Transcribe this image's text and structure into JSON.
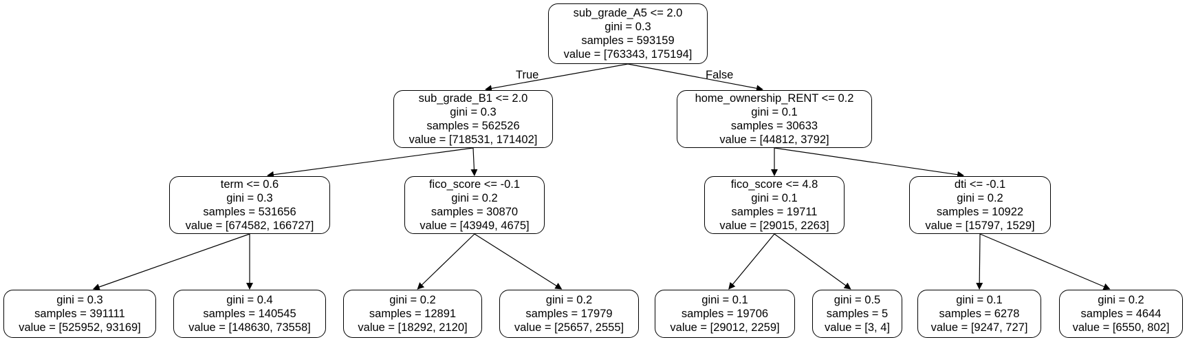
{
  "edge_labels": {
    "true": "True",
    "false": "False"
  },
  "nodes": [
    {
      "id": "n0",
      "condition": "sub_grade_A5 <= 2.0",
      "gini": "gini = 0.3",
      "samples": "samples = 593159",
      "value": "value = [763343, 175194]"
    },
    {
      "id": "n1",
      "condition": "sub_grade_B1 <= 2.0",
      "gini": "gini = 0.3",
      "samples": "samples = 562526",
      "value": "value = [718531, 171402]"
    },
    {
      "id": "n2",
      "condition": "home_ownership_RENT <= 0.2",
      "gini": "gini = 0.1",
      "samples": "samples = 30633",
      "value": "value = [44812, 3792]"
    },
    {
      "id": "n3",
      "condition": "term <= 0.6",
      "gini": "gini = 0.3",
      "samples": "samples = 531656",
      "value": "value = [674582, 166727]"
    },
    {
      "id": "n4",
      "condition": "fico_score <= -0.1",
      "gini": "gini = 0.2",
      "samples": "samples = 30870",
      "value": "value = [43949, 4675]"
    },
    {
      "id": "n5",
      "condition": "fico_score <= 4.8",
      "gini": "gini = 0.1",
      "samples": "samples = 19711",
      "value": "value = [29015, 2263]"
    },
    {
      "id": "n6",
      "condition": "dti <= -0.1",
      "gini": "gini = 0.2",
      "samples": "samples = 10922",
      "value": "value = [15797, 1529]"
    },
    {
      "id": "l1",
      "gini": "gini = 0.3",
      "samples": "samples = 391111",
      "value": "value = [525952, 93169]"
    },
    {
      "id": "l2",
      "gini": "gini = 0.4",
      "samples": "samples = 140545",
      "value": "value = [148630, 73558]"
    },
    {
      "id": "l3",
      "gini": "gini = 0.2",
      "samples": "samples = 12891",
      "value": "value = [18292, 2120]"
    },
    {
      "id": "l4",
      "gini": "gini = 0.2",
      "samples": "samples = 17979",
      "value": "value = [25657, 2555]"
    },
    {
      "id": "l5",
      "gini": "gini = 0.1",
      "samples": "samples = 19706",
      "value": "value = [29012, 2259]"
    },
    {
      "id": "l6",
      "gini": "gini = 0.5",
      "samples": "samples = 5",
      "value": "value = [3, 4]"
    },
    {
      "id": "l7",
      "gini": "gini = 0.1",
      "samples": "samples = 6278",
      "value": "value = [9247, 727]"
    },
    {
      "id": "l8",
      "gini": "gini = 0.2",
      "samples": "samples = 4644",
      "value": "value = [6550, 802]"
    }
  ],
  "edges": [
    [
      "n0",
      "n1"
    ],
    [
      "n0",
      "n2"
    ],
    [
      "n1",
      "n3"
    ],
    [
      "n1",
      "n4"
    ],
    [
      "n2",
      "n5"
    ],
    [
      "n2",
      "n6"
    ],
    [
      "n3",
      "l1"
    ],
    [
      "n3",
      "l2"
    ],
    [
      "n4",
      "l3"
    ],
    [
      "n4",
      "l4"
    ],
    [
      "n5",
      "l5"
    ],
    [
      "n5",
      "l6"
    ],
    [
      "n6",
      "l7"
    ],
    [
      "n6",
      "l8"
    ]
  ]
}
